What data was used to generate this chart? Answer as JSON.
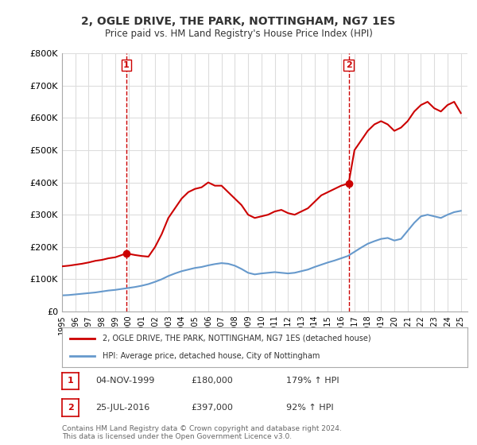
{
  "title": "2, OGLE DRIVE, THE PARK, NOTTINGHAM, NG7 1ES",
  "subtitle": "Price paid vs. HM Land Registry's House Price Index (HPI)",
  "xlabel": "",
  "ylabel": "",
  "ylim": [
    0,
    800000
  ],
  "xlim_start": 1995.0,
  "xlim_end": 2025.5,
  "sale1_date_num": 1999.84,
  "sale1_price": 180000,
  "sale1_label": "1",
  "sale1_date_str": "04-NOV-1999",
  "sale1_price_str": "£180,000",
  "sale1_hpi_str": "179% ↑ HPI",
  "sale2_date_num": 2016.56,
  "sale2_price": 397000,
  "sale2_label": "2",
  "sale2_date_str": "25-JUL-2016",
  "sale2_price_str": "£397,000",
  "sale2_hpi_str": "92% ↑ HPI",
  "red_color": "#cc0000",
  "blue_color": "#6699cc",
  "dashed_red": "#cc0000",
  "background": "#ffffff",
  "grid_color": "#dddddd",
  "legend1_label": "2, OGLE DRIVE, THE PARK, NOTTINGHAM, NG7 1ES (detached house)",
  "legend2_label": "HPI: Average price, detached house, City of Nottingham",
  "footer": "Contains HM Land Registry data © Crown copyright and database right 2024.\nThis data is licensed under the Open Government Licence v3.0.",
  "yticks": [
    0,
    100000,
    200000,
    300000,
    400000,
    500000,
    600000,
    700000,
    800000
  ],
  "ytick_labels": [
    "£0",
    "£100K",
    "£200K",
    "£300K",
    "£400K",
    "£500K",
    "£600K",
    "£700K",
    "£800K"
  ],
  "xticks": [
    1995,
    1996,
    1997,
    1998,
    1999,
    2000,
    2001,
    2002,
    2003,
    2004,
    2005,
    2006,
    2007,
    2008,
    2009,
    2010,
    2011,
    2012,
    2013,
    2014,
    2015,
    2016,
    2017,
    2018,
    2019,
    2020,
    2021,
    2022,
    2023,
    2024,
    2025
  ],
  "red_x": [
    1995.0,
    1995.5,
    1996.0,
    1996.5,
    1997.0,
    1997.5,
    1998.0,
    1998.5,
    1999.0,
    1999.84,
    2000.5,
    2001.0,
    2001.5,
    2002.0,
    2002.5,
    2003.0,
    2003.5,
    2004.0,
    2004.5,
    2005.0,
    2005.5,
    2006.0,
    2006.5,
    2007.0,
    2007.5,
    2008.0,
    2008.5,
    2009.0,
    2009.5,
    2010.0,
    2010.5,
    2011.0,
    2011.5,
    2012.0,
    2012.5,
    2013.0,
    2013.5,
    2014.0,
    2014.5,
    2015.0,
    2015.5,
    2016.0,
    2016.56,
    2017.0,
    2017.5,
    2018.0,
    2018.5,
    2019.0,
    2019.5,
    2020.0,
    2020.5,
    2021.0,
    2021.5,
    2022.0,
    2022.5,
    2023.0,
    2023.5,
    2024.0,
    2024.5,
    2025.0
  ],
  "red_y": [
    140000,
    142000,
    145000,
    148000,
    152000,
    157000,
    160000,
    165000,
    168000,
    180000,
    175000,
    172000,
    170000,
    200000,
    240000,
    290000,
    320000,
    350000,
    370000,
    380000,
    385000,
    400000,
    390000,
    390000,
    370000,
    350000,
    330000,
    300000,
    290000,
    295000,
    300000,
    310000,
    315000,
    305000,
    300000,
    310000,
    320000,
    340000,
    360000,
    370000,
    380000,
    390000,
    397000,
    500000,
    530000,
    560000,
    580000,
    590000,
    580000,
    560000,
    570000,
    590000,
    620000,
    640000,
    650000,
    630000,
    620000,
    640000,
    650000,
    615000
  ],
  "blue_x": [
    1995.0,
    1995.5,
    1996.0,
    1996.5,
    1997.0,
    1997.5,
    1998.0,
    1998.5,
    1999.0,
    1999.5,
    2000.0,
    2000.5,
    2001.0,
    2001.5,
    2002.0,
    2002.5,
    2003.0,
    2003.5,
    2004.0,
    2004.5,
    2005.0,
    2005.5,
    2006.0,
    2006.5,
    2007.0,
    2007.5,
    2008.0,
    2008.5,
    2009.0,
    2009.5,
    2010.0,
    2010.5,
    2011.0,
    2011.5,
    2012.0,
    2012.5,
    2013.0,
    2013.5,
    2014.0,
    2014.5,
    2015.0,
    2015.5,
    2016.0,
    2016.5,
    2017.0,
    2017.5,
    2018.0,
    2018.5,
    2019.0,
    2019.5,
    2020.0,
    2020.5,
    2021.0,
    2021.5,
    2022.0,
    2022.5,
    2023.0,
    2023.5,
    2024.0,
    2024.5,
    2025.0
  ],
  "blue_y": [
    50000,
    51000,
    53000,
    55000,
    57000,
    59000,
    62000,
    65000,
    67000,
    70000,
    73000,
    76000,
    80000,
    85000,
    92000,
    100000,
    110000,
    118000,
    125000,
    130000,
    135000,
    138000,
    143000,
    147000,
    150000,
    148000,
    142000,
    132000,
    120000,
    115000,
    118000,
    120000,
    122000,
    120000,
    118000,
    120000,
    125000,
    130000,
    138000,
    145000,
    152000,
    158000,
    165000,
    172000,
    185000,
    198000,
    210000,
    218000,
    225000,
    228000,
    220000,
    225000,
    250000,
    275000,
    295000,
    300000,
    295000,
    290000,
    300000,
    308000,
    312000
  ]
}
